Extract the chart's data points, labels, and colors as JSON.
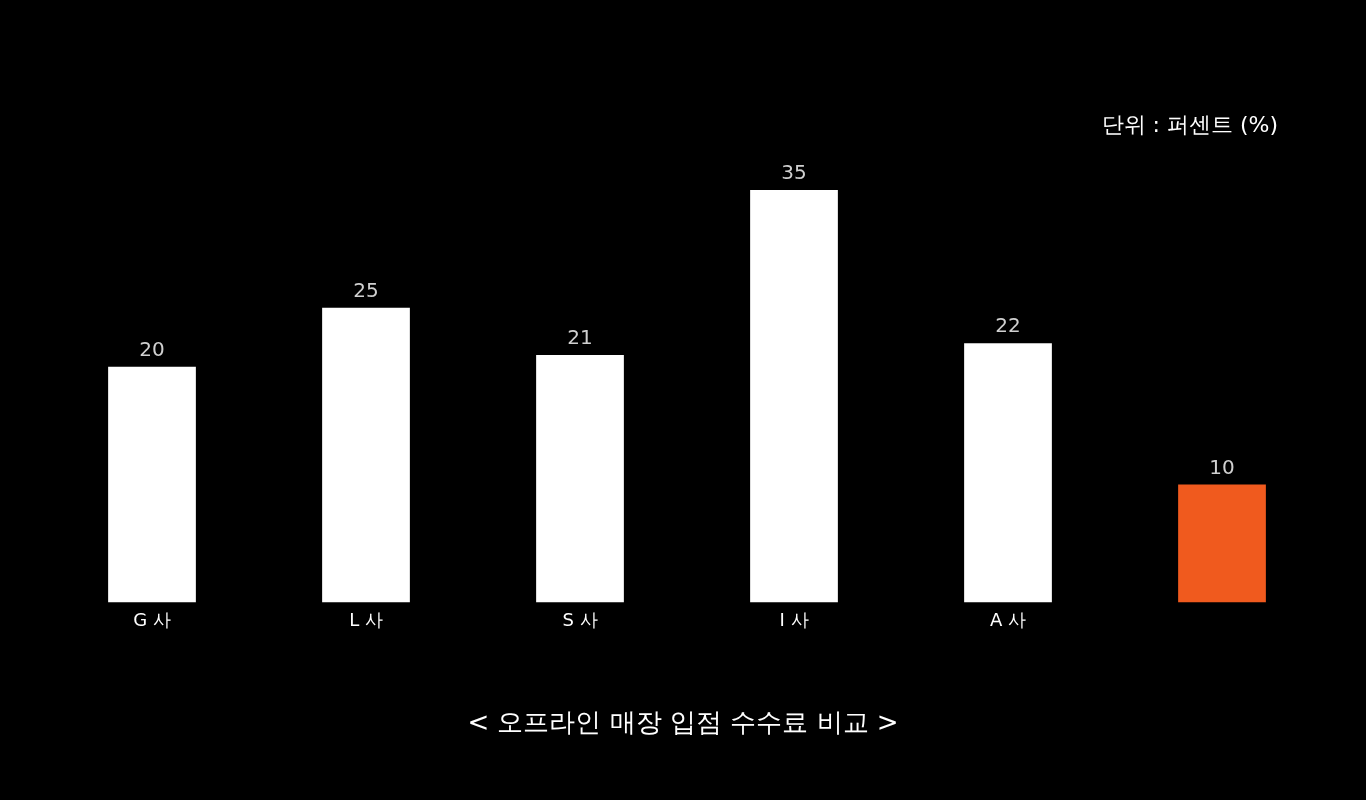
{
  "chart_data": {
    "type": "bar",
    "title": "< 오프라인 매장 입점 수수료 비교 >",
    "annotations": [
      "단위 : 퍼센트 (%)"
    ],
    "categories": [
      "G 사",
      "L 사",
      "S 사",
      "I 사",
      "A 사",
      null
    ],
    "values": [
      20,
      25,
      21,
      35,
      22,
      10
    ],
    "colors": [
      "#ffffff",
      "#ffffff",
      "#ffffff",
      "#ffffff",
      "#ffffff",
      "#f05a1e"
    ],
    "data_labels": true
  }
}
